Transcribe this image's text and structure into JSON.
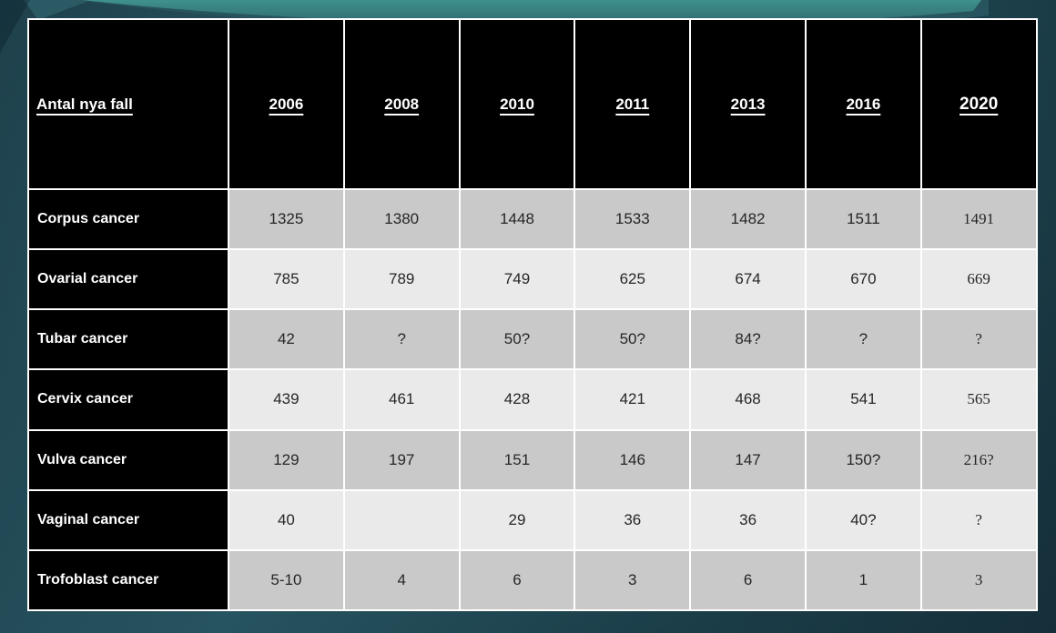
{
  "slide": {
    "colors": {
      "background_dark": "#152f3a",
      "background_mid": "#265460",
      "swoosh_bright_top": "#3f918d",
      "swoosh_bright_bottom": "#2d666b",
      "swoosh_dark_edge": "#27545e",
      "swoosh_left_triangle": "#2b5a64",
      "table_header_bg": "#000000",
      "table_header_text": "#ffffff",
      "row_gray": "#c9c9c9",
      "row_light": "#eaeaea",
      "cell_text": "#262626",
      "grid": "#ffffff"
    }
  },
  "chart_data": {
    "type": "table",
    "title": "Antal nya fall",
    "columns": [
      "2006",
      "2008",
      "2010",
      "2011",
      "2013",
      "2016",
      "2020"
    ],
    "rows": [
      {
        "name": "Corpus cancer",
        "values": [
          "1325",
          "1380",
          "1448",
          "1533",
          "1482",
          "1511",
          "1491"
        ]
      },
      {
        "name": "Ovarial cancer",
        "values": [
          "785",
          "789",
          "749",
          "625",
          "674",
          "670",
          "669"
        ]
      },
      {
        "name": "Tubar cancer",
        "values": [
          "42",
          "?",
          "50?",
          "50?",
          "84?",
          "?",
          "?"
        ]
      },
      {
        "name": "Cervix cancer",
        "values": [
          "439",
          "461",
          "428",
          "421",
          "468",
          "541",
          "565"
        ]
      },
      {
        "name": "Vulva cancer",
        "values": [
          "129",
          "197",
          "151",
          "146",
          "147",
          "150?",
          "216?"
        ]
      },
      {
        "name": "Vaginal cancer",
        "values": [
          "40",
          "",
          "29",
          "36",
          "36",
          "40?",
          "?"
        ]
      },
      {
        "name": "Trofoblast cancer",
        "values": [
          "5-10",
          "4",
          "6",
          "3",
          "6",
          "1",
          "3"
        ]
      }
    ]
  }
}
